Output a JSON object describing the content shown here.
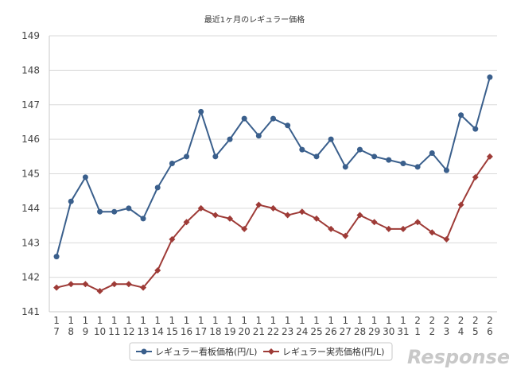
{
  "chart_data": {
    "type": "line",
    "title": "最近1ヶ月のレギュラー価格",
    "xlabel": "",
    "ylabel": "",
    "ylim": [
      141,
      149
    ],
    "yticks": [
      "141",
      "142",
      "143",
      "144",
      "145",
      "146",
      "147",
      "148",
      "149"
    ],
    "grid": true,
    "legend_position": "bottom",
    "categories": [
      [
        "1",
        "7"
      ],
      [
        "1",
        "8"
      ],
      [
        "1",
        "9"
      ],
      [
        "1",
        "10"
      ],
      [
        "1",
        "11"
      ],
      [
        "1",
        "12"
      ],
      [
        "1",
        "13"
      ],
      [
        "1",
        "14"
      ],
      [
        "1",
        "15"
      ],
      [
        "1",
        "16"
      ],
      [
        "1",
        "17"
      ],
      [
        "1",
        "18"
      ],
      [
        "1",
        "19"
      ],
      [
        "1",
        "20"
      ],
      [
        "1",
        "21"
      ],
      [
        "1",
        "22"
      ],
      [
        "1",
        "23"
      ],
      [
        "1",
        "24"
      ],
      [
        "1",
        "25"
      ],
      [
        "1",
        "26"
      ],
      [
        "1",
        "27"
      ],
      [
        "1",
        "28"
      ],
      [
        "1",
        "29"
      ],
      [
        "1",
        "30"
      ],
      [
        "1",
        "31"
      ],
      [
        "2",
        "1"
      ],
      [
        "2",
        "2"
      ],
      [
        "2",
        "3"
      ],
      [
        "2",
        "4"
      ],
      [
        "2",
        "5"
      ],
      [
        "2",
        "6"
      ]
    ],
    "series": [
      {
        "name": "レギュラー看板価格(円/L)",
        "color": "#3a5f8c",
        "marker": "circle",
        "values": [
          142.6,
          144.2,
          144.9,
          143.9,
          143.9,
          144.0,
          143.7,
          144.6,
          145.3,
          145.5,
          146.8,
          145.5,
          146.0,
          146.6,
          146.1,
          146.6,
          146.4,
          145.7,
          145.5,
          146.0,
          145.2,
          145.7,
          145.5,
          145.4,
          145.3,
          145.2,
          145.6,
          145.1,
          146.7,
          146.3,
          147.8
        ]
      },
      {
        "name": "レギュラー実売価格(円/L)",
        "color": "#9e3b37",
        "marker": "diamond",
        "values": [
          141.7,
          141.8,
          141.8,
          141.6,
          141.8,
          141.8,
          141.7,
          142.2,
          143.1,
          143.6,
          144.0,
          143.8,
          143.7,
          143.4,
          144.1,
          144.0,
          143.8,
          143.9,
          143.7,
          143.4,
          143.2,
          143.8,
          143.6,
          143.4,
          143.4,
          143.6,
          143.3,
          143.1,
          144.1,
          144.9,
          145.5
        ]
      }
    ]
  },
  "watermark": "Response."
}
